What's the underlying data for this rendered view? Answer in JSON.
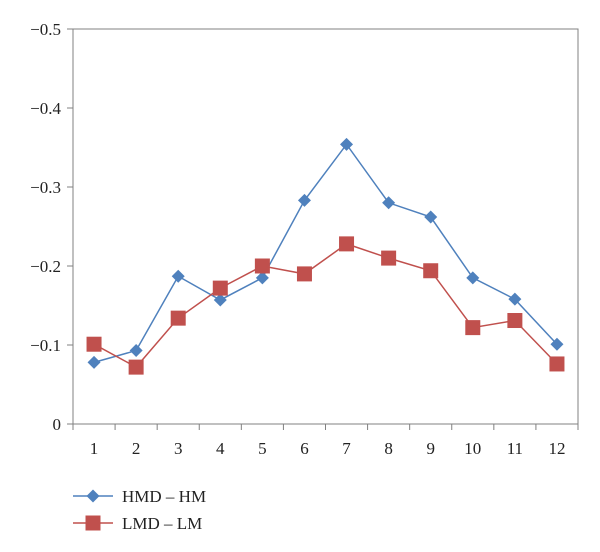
{
  "chart_data": {
    "type": "line",
    "title": "",
    "xlabel": "",
    "ylabel": "",
    "x": [
      1,
      2,
      3,
      4,
      5,
      6,
      7,
      8,
      9,
      10,
      11,
      12
    ],
    "x_tick_labels": [
      "1",
      "2",
      "3",
      "4",
      "5",
      "6",
      "7",
      "8",
      "9",
      "10",
      "11",
      "12"
    ],
    "ylim": [
      0,
      -0.5
    ],
    "y_inverted": true,
    "y_ticks": [
      0,
      -0.1,
      -0.2,
      -0.3,
      -0.4,
      -0.5
    ],
    "y_tick_labels": [
      "0",
      "−0.1",
      "−0.2",
      "−0.3",
      "−0.4",
      "−0.5"
    ],
    "grid": false,
    "legend_position": "bottom-left",
    "series": [
      {
        "name": "HMD – HM",
        "color": "#4f81bd",
        "marker": "diamond",
        "values": [
          -0.078,
          -0.093,
          -0.187,
          -0.157,
          -0.185,
          -0.283,
          -0.354,
          -0.28,
          -0.262,
          -0.185,
          -0.158,
          -0.101
        ]
      },
      {
        "name": "LMD – LM",
        "color": "#c0504d",
        "marker": "square",
        "values": [
          -0.101,
          -0.072,
          -0.134,
          -0.172,
          -0.2,
          -0.19,
          -0.228,
          -0.21,
          -0.194,
          -0.122,
          -0.131,
          -0.076
        ]
      }
    ]
  }
}
